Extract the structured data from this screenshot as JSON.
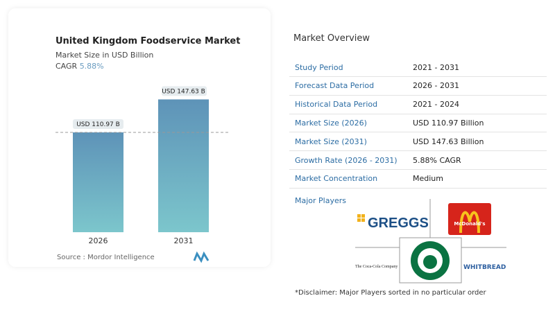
{
  "chart_card": {
    "title": "United Kingdom Foodservice Market",
    "subtitle": "Market Size in USD Billion",
    "cagr_label": "CAGR",
    "cagr_value": "5.88%",
    "source": "Source :  Mordor Intelligence"
  },
  "chart_data": {
    "type": "bar",
    "title": "United Kingdom Foodservice Market",
    "categories": [
      "2026",
      "2031"
    ],
    "values": [
      110.97,
      147.63
    ],
    "data_labels": [
      "USD 110.97 B",
      "USD 147.63 B"
    ],
    "ylabel": "Market Size in USD Billion",
    "grid": false,
    "colors": {
      "bar_top": "#5e93b8",
      "bar_bottom": "#7cc6cc"
    }
  },
  "overview": {
    "title": "Market Overview",
    "rows": [
      {
        "label": "Study Period",
        "value": "2021 - 2031"
      },
      {
        "label": "Forecast Data Period",
        "value": "2026 - 2031"
      },
      {
        "label": "Historical Data Period",
        "value": "2021 - 2024"
      },
      {
        "label": "Market Size (2026)",
        "value": "USD 110.97 Billion"
      },
      {
        "label": "Market Size (2031)",
        "value": "USD 147.63 Billion"
      },
      {
        "label": "Growth Rate (2026 - 2031)",
        "value": "5.88% CAGR"
      },
      {
        "label": "Market Concentration",
        "value": "Medium"
      }
    ],
    "major_players_label": "Major Players",
    "players": [
      "GREGGS",
      "McDonald's",
      "Starbucks",
      "The Coca-Cola Company",
      "WHITBREAD"
    ],
    "disclaimer": "*Disclaimer: Major Players sorted in no particular order"
  }
}
